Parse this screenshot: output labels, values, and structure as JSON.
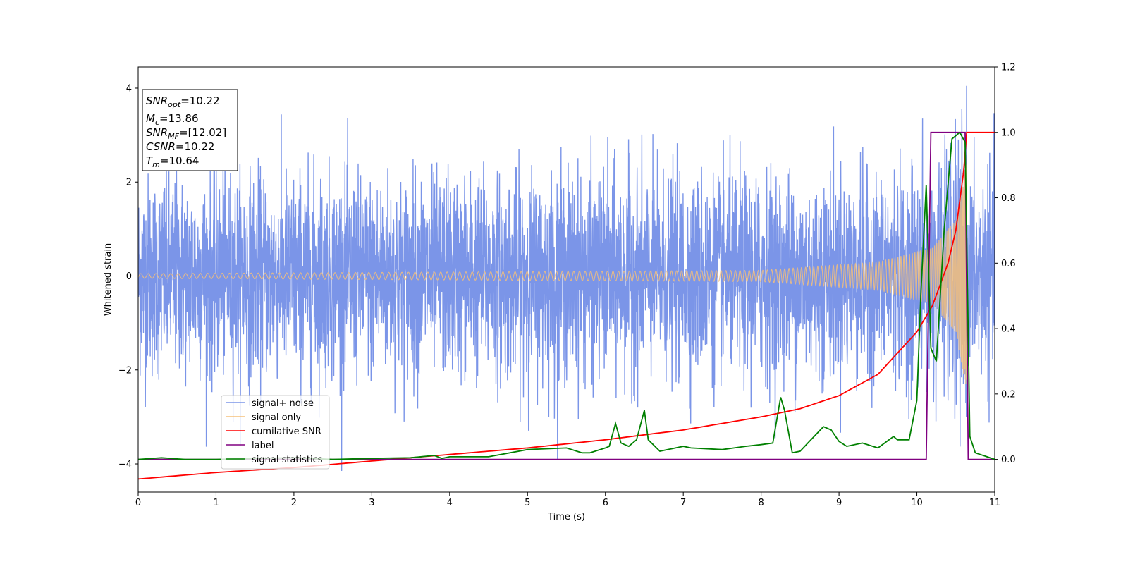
{
  "chart_data": {
    "type": "line",
    "xlabel": "Time (s)",
    "ylabel": "Whitened strain",
    "xlim": [
      0,
      11
    ],
    "ylim": [
      -4.6,
      4.45
    ],
    "y2lim": [
      -0.1,
      1.2
    ],
    "grid": false,
    "legend_position": "lower-left",
    "x_ticks": [
      "0",
      "1",
      "2",
      "3",
      "4",
      "5",
      "6",
      "7",
      "8",
      "9",
      "10",
      "11"
    ],
    "y_ticks": [
      "4",
      "2",
      "0",
      "−2",
      "−4"
    ],
    "y2_ticks": [
      "1.2",
      "1.0",
      "0.8",
      "0.6",
      "0.4",
      "0.2",
      "0.0"
    ],
    "info_box": [
      {
        "name": "SNR",
        "sub": "opt",
        "value": "=10.22"
      },
      {
        "name": "M",
        "sub": "c",
        "value": "=13.86"
      },
      {
        "name": "SNR",
        "sub": "MF",
        "value": "=[12.02]"
      },
      {
        "name": "CSNR",
        "sub": "",
        "value": "=10.22"
      },
      {
        "name": "T",
        "sub": "m",
        "value": "=10.64"
      }
    ],
    "series": [
      {
        "name": "signal+ noise",
        "color": "#7b95e8",
        "axis": "left",
        "description_values": {
          "noise_std": 1.0,
          "typical_range": [
            -3.9,
            4.0
          ]
        }
      },
      {
        "name": "signal only",
        "color": "#f5c07a",
        "axis": "left",
        "chirp": {
          "merger_time": 10.64,
          "amplitude_at": [
            [
              0,
              0.05
            ],
            [
              8,
              0.12
            ],
            [
              9.5,
              0.3
            ],
            [
              10.2,
              0.6
            ],
            [
              10.5,
              1.2
            ],
            [
              10.64,
              2.5
            ]
          ]
        }
      },
      {
        "name": "cumilative SNR",
        "color": "#ff0000",
        "axis": "right",
        "x": [
          0,
          1,
          2,
          3,
          4,
          5,
          6,
          7,
          8,
          8.5,
          9,
          9.5,
          10,
          10.2,
          10.4,
          10.5,
          10.6,
          10.64,
          11
        ],
        "y": [
          -0.06,
          -0.04,
          -0.025,
          -0.005,
          0.015,
          0.035,
          0.06,
          0.09,
          0.13,
          0.155,
          0.195,
          0.26,
          0.39,
          0.47,
          0.6,
          0.7,
          0.88,
          1.0,
          1.0
        ]
      },
      {
        "name": "label",
        "color": "#800080",
        "axis": "right",
        "x": [
          0,
          10.12,
          10.18,
          10.62,
          10.66,
          11
        ],
        "y": [
          0,
          0,
          1.0,
          1.0,
          0,
          0
        ]
      },
      {
        "name": "signal statistics",
        "color": "#008000",
        "axis": "right",
        "x": [
          0,
          0.3,
          0.6,
          1,
          1.5,
          2,
          2.5,
          3,
          3.5,
          3.8,
          3.9,
          4,
          4.5,
          5,
          5.5,
          5.7,
          5.8,
          6,
          6.05,
          6.13,
          6.2,
          6.3,
          6.4,
          6.5,
          6.55,
          6.7,
          7,
          7.1,
          7.5,
          7.8,
          8,
          8.15,
          8.25,
          8.3,
          8.4,
          8.5,
          8.8,
          8.9,
          9,
          9.1,
          9.3,
          9.5,
          9.7,
          9.75,
          9.9,
          10,
          10.05,
          10.12,
          10.18,
          10.25,
          10.35,
          10.45,
          10.55,
          10.62,
          10.68,
          10.75,
          11
        ],
        "y": [
          0,
          0.005,
          0,
          0.0,
          0.003,
          0.005,
          0.0,
          0.003,
          0.005,
          0.012,
          0.003,
          0.008,
          0.008,
          0.03,
          0.035,
          0.02,
          0.02,
          0.035,
          0.04,
          0.11,
          0.05,
          0.04,
          0.06,
          0.15,
          0.06,
          0.025,
          0.04,
          0.035,
          0.03,
          0.04,
          0.045,
          0.05,
          0.19,
          0.15,
          0.02,
          0.025,
          0.1,
          0.09,
          0.055,
          0.04,
          0.05,
          0.035,
          0.07,
          0.06,
          0.06,
          0.18,
          0.5,
          0.84,
          0.34,
          0.3,
          0.7,
          0.98,
          1.0,
          0.97,
          0.07,
          0.02,
          0.0
        ]
      }
    ]
  }
}
